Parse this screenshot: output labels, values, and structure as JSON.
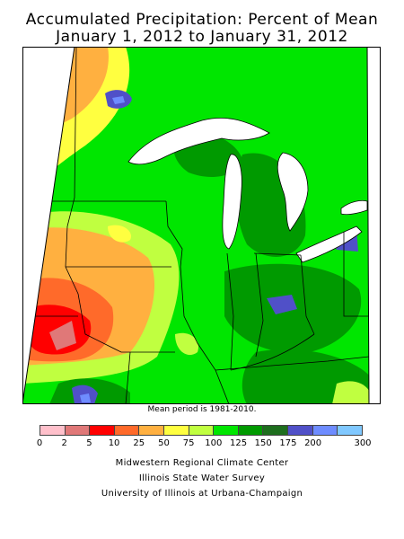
{
  "header": {
    "title": "Accumulated Precipitation: Percent of Mean",
    "subtitle": "January 1, 2012 to January 31, 2012"
  },
  "map": {
    "note": "Mean period is 1981-2010."
  },
  "legend": {
    "ticks": [
      "0",
      "2",
      "5",
      "10",
      "25",
      "50",
      "75",
      "100",
      "125",
      "150",
      "175",
      "200",
      "300"
    ],
    "colors": [
      "#ffc0cb",
      "#e07878",
      "#ff0000",
      "#ff6a2a",
      "#ffb040",
      "#ffff40",
      "#c0ff40",
      "#00e600",
      "#009a00",
      "#1e6e1e",
      "#5050c8",
      "#6e8cff",
      "#80c8ff"
    ]
  },
  "credits": {
    "line1": "Midwestern Regional Climate Center",
    "line2": "Illinois State Water Survey",
    "line3": "University of Illinois at Urbana-Champaign"
  }
}
